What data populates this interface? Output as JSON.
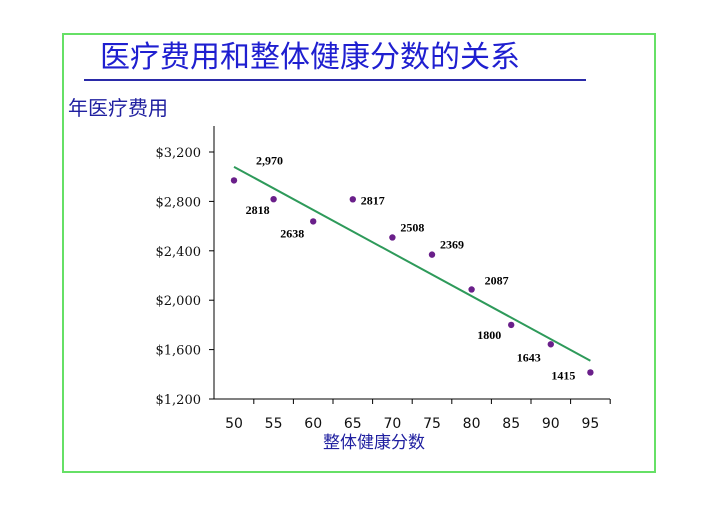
{
  "title": "医疗费用和整体健康分数的关系",
  "chart_data": {
    "type": "scatter",
    "title": "医疗费用和整体健康分数的关系",
    "ylabel": "年医疗费用",
    "xlabel": "整体健康分数",
    "x_ticks": [
      "50",
      "55",
      "60",
      "65",
      "70",
      "75",
      "80",
      "85",
      "90",
      "95"
    ],
    "y_ticks": [
      "$1,200",
      "$1,600",
      "$2,000",
      "$2,400",
      "$2,800",
      "$3,200"
    ],
    "xlim": [
      50,
      95
    ],
    "ylim": [
      1200,
      3400
    ],
    "points": [
      {
        "x": 50,
        "y": 2970,
        "label": "2,970"
      },
      {
        "x": 55,
        "y": 2818,
        "label": "2818"
      },
      {
        "x": 60,
        "y": 2638,
        "label": "2638"
      },
      {
        "x": 65,
        "y": 2817,
        "label": "2817"
      },
      {
        "x": 70,
        "y": 2508,
        "label": "2508"
      },
      {
        "x": 75,
        "y": 2369,
        "label": "2369"
      },
      {
        "x": 80,
        "y": 2087,
        "label": "2087"
      },
      {
        "x": 85,
        "y": 1800,
        "label": "1800"
      },
      {
        "x": 90,
        "y": 1643,
        "label": "1643"
      },
      {
        "x": 95,
        "y": 1415,
        "label": "1415"
      }
    ],
    "trendline": {
      "x": [
        50,
        95
      ],
      "y": [
        3080,
        1510
      ]
    },
    "colors": {
      "point": "#6a1f8a",
      "trend": "#2e9a5a",
      "axis": "#000000"
    }
  }
}
